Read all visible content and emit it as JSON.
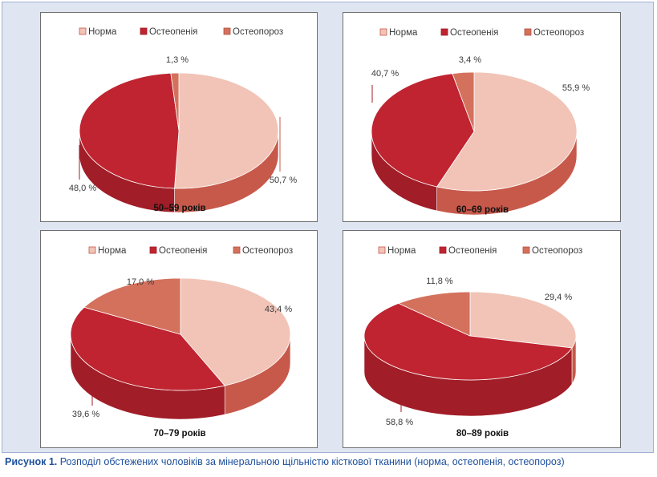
{
  "caption": {
    "label": "Рисунок 1.",
    "text": "Розподіл обстежених чоловіків за мінеральною щільністю кісткової тканини (норма, остеопенія, остеопороз)"
  },
  "colors": {
    "norma": "#f1c4b7",
    "norma_side": "#c7594b",
    "osteopenia": "#bf2430",
    "osteopenia_side": "#a11d27",
    "osteoporoz": "#d4715d",
    "osteoporoz_side": "#b1513f"
  },
  "chart_data": [
    {
      "type": "pie",
      "title": "50–59 років",
      "legend": [
        "Норма",
        "Остеопенія",
        "Остеопороз"
      ],
      "values": [
        50.7,
        48.0,
        1.3
      ],
      "labels": [
        "50,7 %",
        "48,0 %",
        "1,3 %"
      ]
    },
    {
      "type": "pie",
      "title": "60–69 років",
      "legend": [
        "Норма",
        "Остеопенія",
        "Остеопороз"
      ],
      "values": [
        55.9,
        40.7,
        3.4
      ],
      "labels": [
        "55,9 %",
        "40,7 %",
        "3,4 %"
      ]
    },
    {
      "type": "pie",
      "title": "70–79 років",
      "legend": [
        "Норма",
        "Остеопенія",
        "Остеопороз"
      ],
      "values": [
        43.4,
        39.6,
        17.0
      ],
      "labels": [
        "43,4 %",
        "39,6 %",
        "17,0 %"
      ]
    },
    {
      "type": "pie",
      "title": "80–89 років",
      "legend": [
        "Норма",
        "Остеопенія",
        "Остеопороз"
      ],
      "values": [
        29.4,
        58.8,
        11.8
      ],
      "labels": [
        "29,4 %",
        "58,8 %",
        "11,8 %"
      ]
    }
  ]
}
